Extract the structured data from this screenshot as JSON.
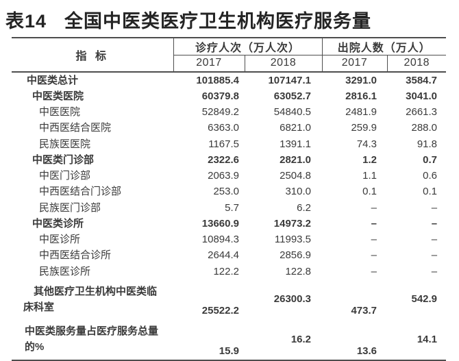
{
  "title": {
    "prefix": "表14",
    "main": "全国中医类医疗卫生机构医疗服务量"
  },
  "colors": {
    "text": "#3a3a3a",
    "line": "#4d4d4d",
    "title": "#242424",
    "background": "#ffffff"
  },
  "table": {
    "header": {
      "indicator": "指 标",
      "groups": [
        {
          "label": "诊疗人次（万人次）",
          "years": [
            "2017",
            "2018"
          ]
        },
        {
          "label": "出院人数（万人）",
          "years": [
            "2017",
            "2018"
          ]
        }
      ]
    },
    "rows": [
      {
        "label": "中医类总计",
        "level": 0,
        "bold": true,
        "values": [
          "101885.4",
          "107147.1",
          "3291.0",
          "3584.7"
        ]
      },
      {
        "label": "中医类医院",
        "level": 1,
        "bold": true,
        "values": [
          "60379.8",
          "63052.7",
          "2816.1",
          "3041.0"
        ]
      },
      {
        "label": "中医医院",
        "level": 2,
        "bold": false,
        "values": [
          "52849.2",
          "54840.5",
          "2481.9",
          "2661.3"
        ]
      },
      {
        "label": "中西医结合医院",
        "level": 2,
        "bold": false,
        "values": [
          "6363.0",
          "6821.0",
          "259.9",
          "288.0"
        ]
      },
      {
        "label": "民族医医院",
        "level": 2,
        "bold": false,
        "values": [
          "1167.5",
          "1391.1",
          "74.3",
          "91.8"
        ]
      },
      {
        "label": "中医类门诊部",
        "level": 1,
        "bold": true,
        "values": [
          "2322.6",
          "2821.0",
          "1.2",
          "0.7"
        ]
      },
      {
        "label": "中医门诊部",
        "level": 2,
        "bold": false,
        "values": [
          "2063.9",
          "2504.8",
          "1.1",
          "0.6"
        ]
      },
      {
        "label": "中西医结合门诊部",
        "level": 2,
        "bold": false,
        "values": [
          "253.0",
          "310.0",
          "0.1",
          "0.1"
        ]
      },
      {
        "label": "民族医门诊部",
        "level": 2,
        "bold": false,
        "values": [
          "5.7",
          "6.2",
          "–",
          "–"
        ]
      },
      {
        "label": "中医类诊所",
        "level": 1,
        "bold": true,
        "values": [
          "13660.9",
          "14973.2",
          "–",
          "–"
        ]
      },
      {
        "label": "中医诊所",
        "level": 2,
        "bold": false,
        "values": [
          "10894.3",
          "11993.5",
          "–",
          "–"
        ]
      },
      {
        "label": "中西医结合诊所",
        "level": 2,
        "bold": false,
        "values": [
          "2644.4",
          "2856.9",
          "–",
          "–"
        ]
      },
      {
        "label": "民族医诊所",
        "level": 2,
        "bold": false,
        "values": [
          "122.2",
          "122.8",
          "–",
          "–"
        ]
      },
      {
        "label": "其他医疗卫生机构中医类临\n床科室",
        "level": 0,
        "bold": true,
        "tall": 1,
        "hang": true,
        "values": [
          "25522.2",
          "26300.3",
          "473.7",
          "542.9"
        ]
      },
      {
        "label": "中医类服务量占医疗服务总量\n的%",
        "level": 0,
        "bold": true,
        "tall": 2,
        "flush": true,
        "values": [
          "15.9",
          "16.2",
          "13.6",
          "14.1"
        ]
      }
    ]
  }
}
